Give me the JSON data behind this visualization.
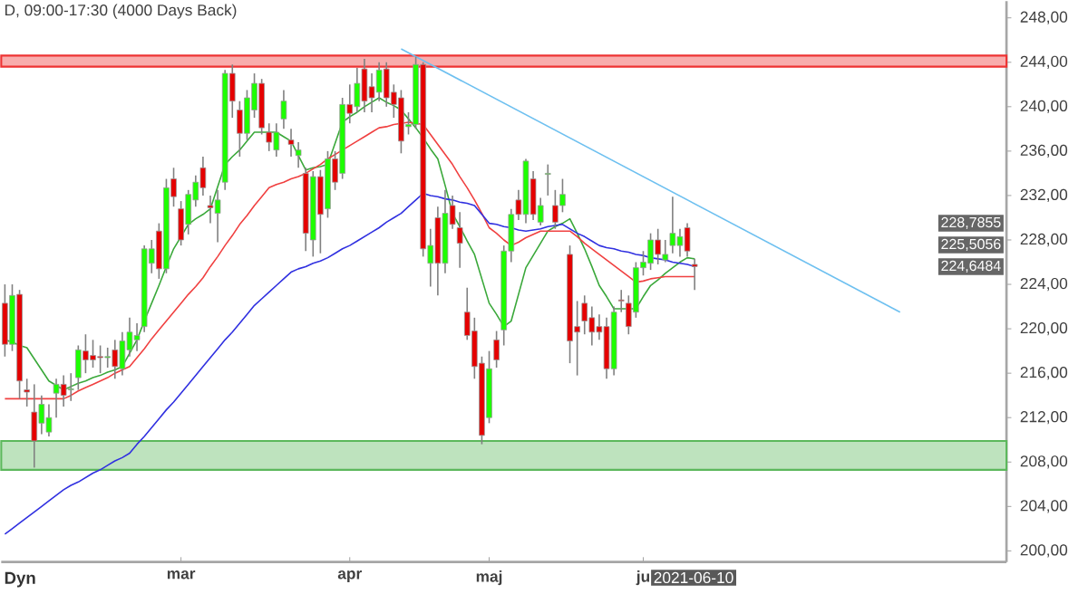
{
  "chart_data": {
    "type": "candlestick",
    "title": "D, 09:00-17:30 (4000 Days Back)",
    "categories": [
      null,
      null,
      null,
      null,
      null,
      null,
      null,
      null,
      null,
      null,
      null,
      null,
      null,
      null,
      null,
      null,
      null,
      null,
      null,
      null,
      null,
      null,
      null,
      null,
      "mar",
      null,
      null,
      null,
      null,
      null,
      null,
      null,
      null,
      null,
      null,
      null,
      null,
      null,
      null,
      null,
      null,
      null,
      null,
      null,
      null,
      null,
      null,
      "apr",
      null,
      null,
      null,
      null,
      null,
      null,
      null,
      null,
      null,
      null,
      null,
      null,
      null,
      null,
      null,
      null,
      null,
      null,
      "maj",
      null,
      null,
      null,
      null,
      null,
      null,
      null,
      null,
      null,
      null,
      null,
      null,
      null,
      null,
      null,
      null,
      null,
      null,
      null,
      null,
      "ju",
      null,
      null,
      null,
      null,
      null,
      null,
      null,
      null,
      null,
      null,
      null,
      null,
      null,
      null,
      null,
      null,
      null,
      null,
      null,
      null,
      null,
      null,
      null,
      null,
      null,
      null,
      null,
      null,
      null,
      null,
      null,
      null,
      null,
      null,
      null,
      null,
      null,
      null,
      null,
      null,
      null,
      null,
      null,
      null,
      null,
      null,
      null,
      null,
      null
    ],
    "ohlc": [
      [
        222.3,
        224,
        217.5,
        218.6
      ],
      [
        218.6,
        224,
        218,
        223.0
      ],
      [
        223.1,
        223.5,
        213.7,
        215.3
      ],
      [
        214.5,
        215.5,
        213,
        214.3
      ],
      [
        212.5,
        215,
        207.5,
        209.9
      ],
      [
        211.5,
        214,
        210.5,
        213.2
      ],
      [
        210.7,
        213.2,
        210.3,
        212.0
      ],
      [
        214.2,
        215.5,
        212,
        215.0
      ],
      [
        215.0,
        215.8,
        213,
        214.0
      ],
      [
        214.5,
        216,
        213.5,
        214.6
      ],
      [
        215.6,
        218.5,
        214.5,
        218.1
      ],
      [
        218.0,
        219.5,
        216,
        217.2
      ],
      [
        217.6,
        219,
        216.5,
        217.2
      ],
      [
        217.5,
        218.5,
        216,
        217.4
      ],
      [
        217.4,
        218.3,
        216.5,
        217.5
      ],
      [
        218.1,
        219,
        215.5,
        216.6
      ],
      [
        216.4,
        219.7,
        215.8,
        218.9
      ],
      [
        218.1,
        221,
        217.5,
        219.7
      ],
      [
        219.0,
        220.5,
        218,
        219.4
      ],
      [
        220.2,
        227.5,
        219.7,
        227.2
      ],
      [
        225.9,
        228,
        225,
        227.2
      ],
      [
        228.8,
        229.5,
        224.5,
        225.4
      ],
      [
        225.4,
        233.5,
        225,
        232.7
      ],
      [
        233.5,
        234.5,
        231,
        231.9
      ],
      [
        230.8,
        231.5,
        227.5,
        228.0
      ],
      [
        229.4,
        232.5,
        228.5,
        232.1
      ],
      [
        231.6,
        233.8,
        231,
        233.2
      ],
      [
        234.5,
        235.5,
        232,
        232.7
      ],
      [
        231.1,
        232,
        229.5,
        230.9
      ],
      [
        230.4,
        232.5,
        227.8,
        231.6
      ],
      [
        233.2,
        243.3,
        232.5,
        243.0
      ],
      [
        243.0,
        243.8,
        239,
        240.5
      ],
      [
        239.7,
        240.5,
        235.5,
        237.6
      ],
      [
        237.6,
        241.5,
        237,
        240.8
      ],
      [
        239.7,
        243,
        239,
        242.1
      ],
      [
        242.1,
        242.5,
        237.5,
        238.1
      ],
      [
        237.7,
        238.5,
        236,
        236.8
      ],
      [
        236.1,
        238.5,
        235.5,
        237.7
      ],
      [
        238.9,
        241.5,
        238,
        240.5
      ],
      [
        237.0,
        238,
        235.5,
        236.6
      ],
      [
        235.6,
        236.8,
        234.5,
        236.1
      ],
      [
        234.0,
        234.5,
        227,
        228.6
      ],
      [
        228.0,
        234.2,
        226.5,
        233.7
      ],
      [
        233.7,
        234.3,
        226.8,
        230.3
      ],
      [
        230.8,
        236,
        230,
        235.3
      ],
      [
        235.3,
        236,
        232.5,
        233.2
      ],
      [
        234.0,
        240.8,
        233.5,
        240.2
      ],
      [
        240.2,
        242,
        238.5,
        239.4
      ],
      [
        240.0,
        243.5,
        239.5,
        242.1
      ],
      [
        243.4,
        244.3,
        239.5,
        240.5
      ],
      [
        241.8,
        243,
        239.5,
        240.8
      ],
      [
        241.3,
        244,
        240.5,
        243.3
      ],
      [
        243.4,
        244,
        240,
        240.8
      ],
      [
        241.3,
        242,
        239,
        240.2
      ],
      [
        240.8,
        241.5,
        235.8,
        236.9
      ],
      [
        238.2,
        239.5,
        237.5,
        238.4
      ],
      [
        238.4,
        244.5,
        238,
        243.8
      ],
      [
        243.8,
        244,
        226.5,
        227.2
      ],
      [
        225.9,
        229,
        223.8,
        227.5
      ],
      [
        230.0,
        231,
        223,
        225.9
      ],
      [
        225.9,
        232.5,
        225,
        230.4
      ],
      [
        231.1,
        232,
        229,
        229.4
      ],
      [
        229.1,
        230.5,
        225.5,
        227.7
      ],
      [
        221.5,
        223.7,
        219,
        219.4
      ],
      [
        219.8,
        221,
        215.5,
        216.6
      ],
      [
        216.9,
        217.5,
        209.6,
        210.4
      ],
      [
        212.0,
        218,
        211.5,
        216.4
      ],
      [
        219.0,
        219.8,
        216.5,
        217.2
      ],
      [
        219.9,
        227.5,
        218.5,
        227.0
      ],
      [
        227.0,
        230.8,
        226,
        230.3
      ],
      [
        231.6,
        232.5,
        229.8,
        230.3
      ],
      [
        230.3,
        235.3,
        229.5,
        235.1
      ],
      [
        233.5,
        234.2,
        229.8,
        230.3
      ],
      [
        229.6,
        231.8,
        229.3,
        231.1
      ],
      [
        233.9,
        234.8,
        232,
        234.0
      ],
      [
        231.1,
        232.5,
        229,
        229.6
      ],
      [
        231.1,
        233.5,
        230.5,
        232.1
      ],
      [
        226.7,
        227.5,
        216.9,
        218.9
      ],
      [
        220.2,
        222.5,
        215.8,
        219.7
      ],
      [
        222.3,
        223,
        219.5,
        220.7
      ],
      [
        221.0,
        222,
        218.5,
        219.7
      ],
      [
        220.2,
        221.3,
        219,
        219.7
      ],
      [
        220.2,
        221,
        215.5,
        216.4
      ],
      [
        216.4,
        222,
        215.8,
        221.5
      ],
      [
        222.6,
        223.5,
        221.5,
        222.5
      ],
      [
        222.3,
        223,
        219.5,
        220.2
      ],
      [
        221.5,
        226,
        221,
        225.5
      ],
      [
        225.5,
        227,
        224.8,
        226.0
      ],
      [
        225.9,
        228.6,
        225.3,
        228.0
      ],
      [
        228.0,
        229,
        225.8,
        226.7
      ],
      [
        226.2,
        228,
        226,
        226.7
      ],
      [
        227.5,
        231.9,
        226.8,
        228.6
      ],
      [
        227.5,
        229,
        226.5,
        228.3
      ],
      [
        229.1,
        229.5,
        226.5,
        227.0
      ],
      [
        225.8,
        226.3,
        223.5,
        225.6
      ],
      null,
      null,
      null,
      null,
      null,
      null,
      null,
      null,
      null,
      null,
      null,
      null,
      null,
      null,
      null,
      null,
      null,
      null,
      null,
      null,
      null,
      null,
      null,
      null,
      null,
      null,
      null,
      null,
      null,
      null,
      null,
      null,
      null,
      null,
      null,
      null,
      null,
      null,
      null,
      null,
      null,
      null
    ],
    "series": [
      {
        "type": "line",
        "color": "#3aa83a",
        "values": [
          219.0,
          218.8,
          218.5,
          218.3,
          217.3,
          216.3,
          215.3,
          214.9,
          214.5,
          214.8,
          215.1,
          215.3,
          215.6,
          215.8,
          216.1,
          216.3,
          216.6,
          217.8,
          219.0,
          220.7,
          222.3,
          223.9,
          225.6,
          227.2,
          228.3,
          229.4,
          229.9,
          230.3,
          230.8,
          232.8,
          234.8,
          235.5,
          236.1,
          236.9,
          237.7,
          237.7,
          237.7,
          237.7,
          237.3,
          236.9,
          235.6,
          234.3,
          234.5,
          234.6,
          234.8,
          236.7,
          238.6,
          239.1,
          239.5,
          240.0,
          240.4,
          240.8,
          240.4,
          240.1,
          239.7,
          238.9,
          238.1,
          237.2,
          236.2,
          235.3,
          232.9,
          230.4,
          229.2,
          227.9,
          226.7,
          224.5,
          222.3,
          221.3,
          220.2,
          220.7,
          223.1,
          225.5,
          226.6,
          227.7,
          228.8,
          229.2,
          229.5,
          229.9,
          228.6,
          227.2,
          225.6,
          223.9,
          222.9,
          221.8,
          221.8,
          221.8,
          221.8,
          222.9,
          223.9,
          224.4,
          225.0,
          225.5,
          226.0,
          226.4,
          226.3,
          null,
          null,
          null,
          null,
          null,
          null,
          null,
          null,
          null,
          null,
          null,
          null,
          null,
          null,
          null,
          null,
          null,
          null,
          null,
          null,
          null,
          null,
          null,
          null,
          null,
          null,
          null,
          null,
          null,
          null,
          null,
          null,
          null,
          null,
          null,
          null,
          null,
          null,
          null,
          null,
          null,
          null
        ]
      },
      {
        "type": "line",
        "color": "#f04040",
        "values": [
          213.7,
          213.7,
          213.7,
          213.7,
          213.7,
          213.7,
          213.7,
          213.7,
          213.7,
          214.0,
          214.4,
          214.7,
          215.0,
          215.3,
          215.6,
          216.0,
          216.3,
          216.6,
          217.4,
          218.2,
          219.1,
          219.9,
          220.7,
          221.5,
          222.3,
          223.1,
          223.8,
          224.6,
          225.6,
          226.5,
          227.5,
          228.4,
          229.4,
          230.2,
          231.1,
          231.9,
          232.7,
          233.0,
          233.2,
          233.5,
          233.7,
          234.0,
          234.4,
          234.8,
          235.3,
          235.7,
          236.1,
          236.5,
          236.9,
          237.3,
          237.7,
          238.1,
          238.2,
          238.4,
          238.5,
          238.6,
          238.5,
          238.4,
          237.5,
          236.6,
          235.7,
          234.8,
          233.7,
          232.7,
          231.6,
          230.4,
          229.1,
          228.6,
          228.0,
          227.5,
          227.8,
          228.2,
          228.5,
          228.8,
          228.8,
          228.8,
          228.8,
          228.8,
          228.3,
          227.7,
          227.2,
          226.7,
          226.2,
          225.7,
          225.2,
          224.7,
          224.2,
          224.3,
          224.5,
          224.6,
          224.7,
          224.7,
          224.7,
          224.7,
          224.7,
          null,
          null,
          null,
          null,
          null,
          null,
          null,
          null,
          null,
          null,
          null,
          null,
          null,
          null,
          null,
          null,
          null,
          null,
          null,
          null,
          null,
          null,
          null,
          null,
          null,
          null,
          null,
          null,
          null,
          null,
          null,
          null,
          null,
          null,
          null,
          null,
          null,
          null,
          null,
          null,
          null,
          null
        ]
      },
      {
        "type": "line",
        "color": "#3030e0",
        "values": [
          201.5,
          202.0,
          202.5,
          203.0,
          203.5,
          204.0,
          204.5,
          205.0,
          205.5,
          205.9,
          206.2,
          206.6,
          207.0,
          207.3,
          207.7,
          208.1,
          208.4,
          208.8,
          209.6,
          210.3,
          211.1,
          211.9,
          212.7,
          213.4,
          214.2,
          215.0,
          215.8,
          216.6,
          217.4,
          218.2,
          219.0,
          219.7,
          220.5,
          221.3,
          222.1,
          222.7,
          223.3,
          223.9,
          224.5,
          225.1,
          225.4,
          225.6,
          225.9,
          226.1,
          226.4,
          226.8,
          227.2,
          227.5,
          227.9,
          228.3,
          228.7,
          229.1,
          229.6,
          230.0,
          230.4,
          231.0,
          231.6,
          232.2,
          232.0,
          231.9,
          231.7,
          231.6,
          231.4,
          231.3,
          231.1,
          230.3,
          229.5,
          229.4,
          229.2,
          229.1,
          228.9,
          228.8,
          228.9,
          229.0,
          229.2,
          229.3,
          229.4,
          229.0,
          228.6,
          228.3,
          227.9,
          227.5,
          227.3,
          227.2,
          227.0,
          226.9,
          226.7,
          226.6,
          226.4,
          226.3,
          226.2,
          226.0,
          225.9,
          225.8,
          225.6,
          null,
          null,
          null,
          null,
          null,
          null,
          null,
          null,
          null,
          null,
          null,
          null,
          null,
          null,
          null,
          null,
          null,
          null,
          null,
          null,
          null,
          null,
          null,
          null,
          null,
          null,
          null,
          null,
          null,
          null,
          null,
          null,
          null,
          null,
          null,
          null,
          null,
          null,
          null,
          null,
          null,
          null
        ]
      },
      {
        "type": "line",
        "color": "#6ec0f0",
        "values": [
          null,
          null,
          null,
          null,
          null,
          null,
          null,
          null,
          null,
          null,
          null,
          null,
          null,
          null,
          null,
          null,
          null,
          null,
          null,
          null,
          null,
          null,
          null,
          null,
          null,
          null,
          null,
          null,
          null,
          null,
          null,
          null,
          null,
          null,
          null,
          null,
          null,
          null,
          null,
          null,
          null,
          null,
          null,
          null,
          null,
          null,
          null,
          null,
          null,
          null,
          null,
          null,
          null,
          null,
          245.2,
          null,
          null,
          null,
          null,
          null,
          null,
          null,
          null,
          null,
          null,
          null,
          null,
          null,
          null,
          null,
          null,
          null,
          null,
          null,
          null,
          null,
          null,
          null,
          null,
          null,
          null,
          null,
          null,
          null,
          null,
          null,
          null,
          null,
          null,
          null,
          null,
          null,
          null,
          null,
          null,
          null,
          null,
          null,
          null,
          null,
          null,
          null,
          null,
          null,
          null,
          null,
          null,
          null,
          null,
          null,
          null,
          null,
          null,
          null,
          null,
          null,
          null,
          null,
          null,
          null,
          null,
          null,
          221.5,
          null,
          null,
          null,
          null,
          null,
          null,
          null,
          null,
          null,
          null,
          null,
          null,
          null,
          null
        ]
      }
    ],
    "bands": [
      {
        "axis": "y",
        "from": 243.6,
        "to": 244.6,
        "color": "#ee3333"
      },
      {
        "axis": "y",
        "from": 207.3,
        "to": 209.9,
        "color": "#5cb85c"
      }
    ],
    "ylim": [
      199,
      249.5
    ],
    "yticks": [
      {
        "value": 200,
        "label": "200,00"
      },
      {
        "value": 204,
        "label": "204,00"
      },
      {
        "value": 208,
        "label": "208,00"
      },
      {
        "value": 212,
        "label": "212,00"
      },
      {
        "value": 216,
        "label": "216,00"
      },
      {
        "value": 220,
        "label": "220,00"
      },
      {
        "value": 224,
        "label": "224,00"
      },
      {
        "value": 228,
        "label": "228,00"
      },
      {
        "value": 232,
        "label": "232,00"
      },
      {
        "value": 236,
        "label": "236,00"
      },
      {
        "value": 240,
        "label": "240,00"
      },
      {
        "value": 244,
        "label": "244,00"
      },
      {
        "value": 248,
        "label": "248,00"
      }
    ],
    "grid": false,
    "annotations": [
      "Dyn",
      "2021-06-10",
      "228,7855",
      "225,5056",
      "224,6484"
    ]
  }
}
